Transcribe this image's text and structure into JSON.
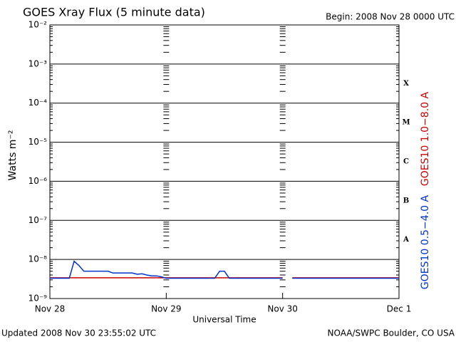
{
  "chart_data": {
    "type": "line",
    "title": "GOES Xray Flux (5 minute data)",
    "subtitle": "Begin:  2008 Nov 28 0000 UTC",
    "ylabel": "Watts m⁻²",
    "xlabel": "Universal Time",
    "footer_left": "Updated 2008 Nov 30 23:55:02 UTC",
    "footer_right": "NOAA/SWPC Boulder, CO USA",
    "log_y": true,
    "grid": true,
    "xlim": [
      0,
      72
    ],
    "xticks": [
      {
        "value": 0,
        "label": "Nov 28"
      },
      {
        "value": 24,
        "label": "Nov 29"
      },
      {
        "value": 48,
        "label": "Nov 30"
      },
      {
        "value": 72,
        "label": "Dec 1"
      }
    ],
    "ylim": [
      1e-09,
      0.01
    ],
    "yticks": [
      {
        "value": 1e-09,
        "label": "10⁻⁹"
      },
      {
        "value": 1e-08,
        "label": "10⁻⁸"
      },
      {
        "value": 1e-07,
        "label": "10⁻⁷"
      },
      {
        "value": 1e-06,
        "label": "10⁻⁶"
      },
      {
        "value": 1e-05,
        "label": "10⁻⁵"
      },
      {
        "value": 0.0001,
        "label": "10⁻⁴"
      },
      {
        "value": 0.001,
        "label": "10⁻³"
      },
      {
        "value": 0.01,
        "label": "10⁻²"
      }
    ],
    "flare_classes": [
      {
        "label": "A",
        "value": 1e-08
      },
      {
        "label": "B",
        "value": 1e-07
      },
      {
        "label": "C",
        "value": 1e-06
      },
      {
        "label": "M",
        "value": 1e-05
      },
      {
        "label": "X",
        "value": 0.0001
      }
    ],
    "x": [
      0,
      1,
      2,
      3,
      4,
      5,
      6,
      7,
      8,
      9,
      10,
      11,
      12,
      13,
      14,
      15,
      16,
      17,
      18,
      19,
      20,
      21,
      22,
      23,
      24,
      25,
      26,
      27,
      28,
      29,
      30,
      31,
      32,
      33,
      34,
      35,
      36,
      37,
      38,
      39,
      40,
      41,
      42,
      43,
      44,
      45,
      46,
      47,
      48,
      49,
      50,
      51,
      52,
      53,
      54,
      55,
      56,
      57,
      58,
      59,
      60,
      61,
      62,
      63,
      64,
      65,
      66,
      67,
      68,
      69,
      70,
      71,
      72
    ],
    "series": [
      {
        "name": "GOES10 1.0−8.0 A",
        "color": "#cc0000",
        "values": [
          3.4e-09,
          3.4e-09,
          3.4e-09,
          3.4e-09,
          3.4e-09,
          3.4e-09,
          3.4e-09,
          3.4e-09,
          3.4e-09,
          3.4e-09,
          3.4e-09,
          3.4e-09,
          3.4e-09,
          3.4e-09,
          3.4e-09,
          3.4e-09,
          3.4e-09,
          3.4e-09,
          3.4e-09,
          3.4e-09,
          3.4e-09,
          3.4e-09,
          3.4e-09,
          3.4e-09,
          3.4e-09,
          3.4e-09,
          3.4e-09,
          3.4e-09,
          3.4e-09,
          3.4e-09,
          3.4e-09,
          3.4e-09,
          3.4e-09,
          3.4e-09,
          3.4e-09,
          3.4e-09,
          3.4e-09,
          3.4e-09,
          3.4e-09,
          3.4e-09,
          3.4e-09,
          3.4e-09,
          3.4e-09,
          3.4e-09,
          3.4e-09,
          3.4e-09,
          3.4e-09,
          3.4e-09,
          3.4e-09,
          null,
          3.4e-09,
          3.4e-09,
          3.4e-09,
          3.4e-09,
          3.4e-09,
          3.4e-09,
          3.4e-09,
          3.4e-09,
          3.4e-09,
          3.4e-09,
          3.4e-09,
          3.4e-09,
          3.4e-09,
          3.4e-09,
          3.4e-09,
          3.4e-09,
          3.4e-09,
          3.4e-09,
          3.4e-09,
          3.4e-09,
          3.4e-09,
          3.4e-09,
          3.4e-09
        ]
      },
      {
        "name": "GOES10 0.5−4.0 A",
        "color": "#0033cc",
        "values": [
          3.3e-09,
          3.3e-09,
          3.3e-09,
          3.3e-09,
          3.3e-09,
          9e-09,
          7e-09,
          5e-09,
          5e-09,
          5e-09,
          5e-09,
          5e-09,
          5e-09,
          4.5e-09,
          4.5e-09,
          4.5e-09,
          4.5e-09,
          4.5e-09,
          4.2e-09,
          4.3e-09,
          4e-09,
          3.8e-09,
          3.8e-09,
          3.6e-09,
          3.3e-09,
          3.3e-09,
          3.3e-09,
          3.3e-09,
          3.3e-09,
          3.3e-09,
          3.3e-09,
          3.3e-09,
          3.3e-09,
          3.3e-09,
          3.3e-09,
          5e-09,
          5e-09,
          3.3e-09,
          3.3e-09,
          3.3e-09,
          3.3e-09,
          3.3e-09,
          3.3e-09,
          3.3e-09,
          3.3e-09,
          3.3e-09,
          3.3e-09,
          3.3e-09,
          3.3e-09,
          null,
          3.3e-09,
          3.3e-09,
          3.3e-09,
          3.3e-09,
          3.3e-09,
          3.3e-09,
          3.3e-09,
          3.3e-09,
          3.3e-09,
          3.3e-09,
          3.3e-09,
          3.3e-09,
          3.3e-09,
          3.3e-09,
          3.3e-09,
          3.3e-09,
          3.3e-09,
          3.3e-09,
          3.3e-09,
          3.3e-09,
          3.3e-09,
          3.3e-09,
          3.3e-09
        ]
      }
    ]
  }
}
